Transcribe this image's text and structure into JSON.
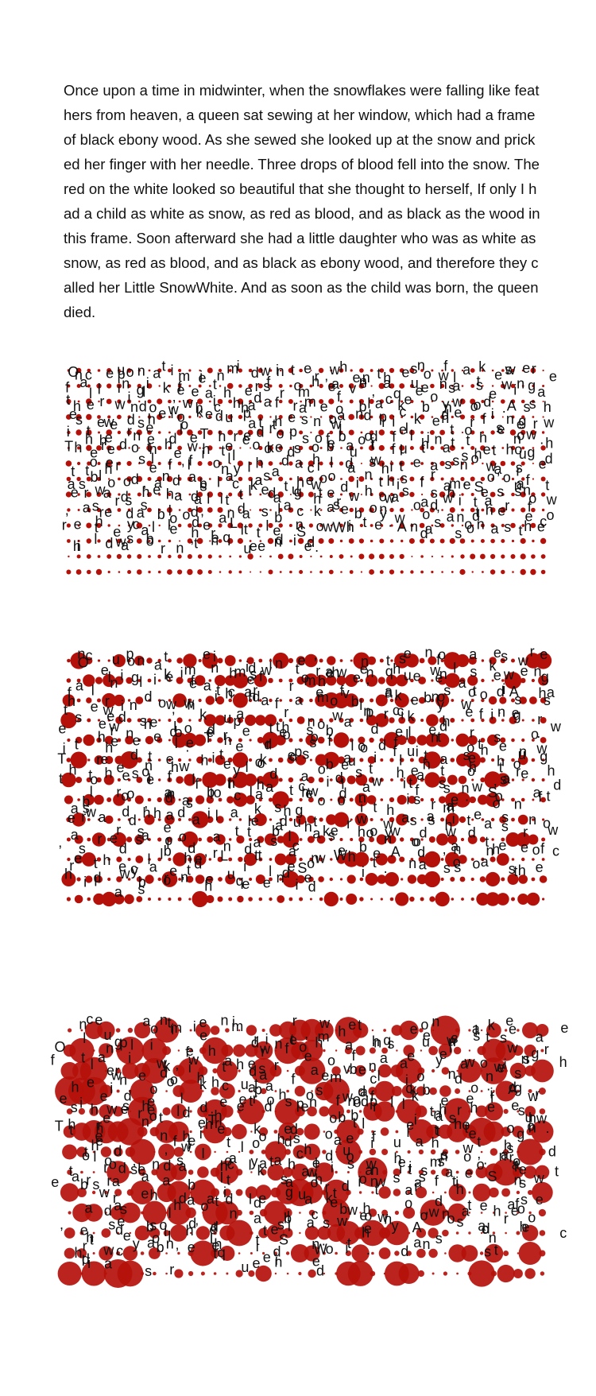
{
  "story": {
    "text": "Once upon a time in midwinter, when the snowflakes were falling like feathers from heaven, a queen sat sewing at her window, which had a frame of black ebony wood. As she sewed she looked up at the snow and pricked her finger with her needle. Three drops of blood fell into the snow. The red on the white looked so beautiful that she thought to herself, If only I had a child as white as snow, as red as blood, and as black as the wood in this frame. Soon afterward she had a little daughter who was as white as snow, as red as blood, and as black as ebony wood, and therefore they called her Little SnowWhite. And as soon as the child was born, the queen died."
  },
  "colors": {
    "blood": "#b5110b",
    "ink": "#111111",
    "background": "#ffffff"
  },
  "panels": [
    {
      "name": "scatter-panel-light",
      "dot_scale": 0.35,
      "scatter": 0.6
    },
    {
      "name": "scatter-panel-medium",
      "dot_scale": 0.7,
      "scatter": 1.0
    },
    {
      "name": "scatter-panel-heavy",
      "dot_scale": 1.25,
      "scatter": 1.6
    }
  ]
}
